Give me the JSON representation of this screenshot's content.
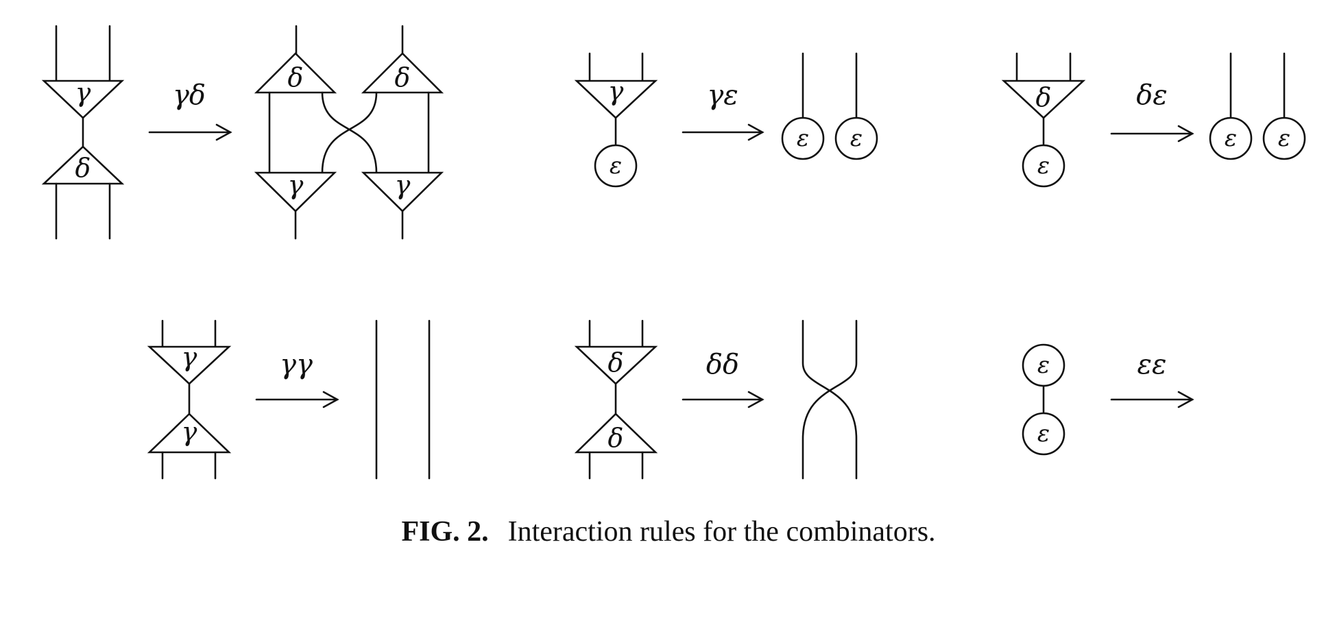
{
  "symbols": {
    "gamma": "γ",
    "delta": "δ",
    "epsilon": "ε"
  },
  "rules": {
    "gamma_delta": {
      "label": "γδ"
    },
    "gamma_epsilon": {
      "label": "γε"
    },
    "delta_epsilon": {
      "label": "δε"
    },
    "gamma_gamma": {
      "label": "γγ"
    },
    "delta_delta": {
      "label": "δδ"
    },
    "epsilon_epsilon": {
      "label": "εε"
    }
  },
  "caption": {
    "number": "FIG. 2.",
    "text": "Interaction rules for the combinators."
  }
}
